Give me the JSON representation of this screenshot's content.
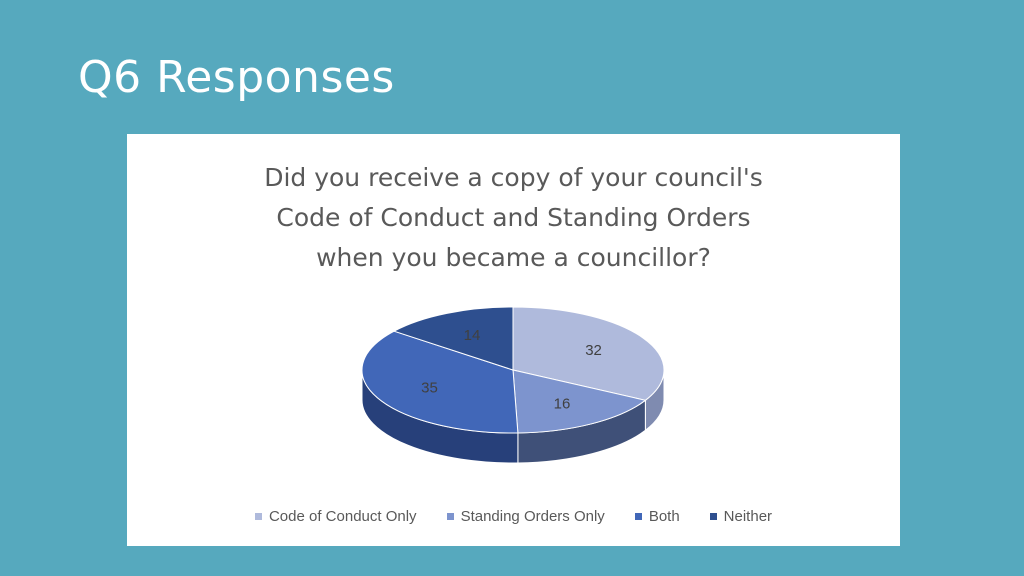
{
  "slide": {
    "title": "Q6 Responses"
  },
  "colors": {
    "background": "#56A9BE",
    "panel": "#FFFFFF",
    "slice_tops": [
      "#AFBADC",
      "#7D94CE",
      "#4167B8",
      "#2E4F8F"
    ],
    "slice_sides": [
      "#7F8BB0",
      "#3F5078",
      "#27407A",
      "#1E3566"
    ]
  },
  "chart_data": {
    "type": "pie",
    "title_lines": [
      "Did you receive a copy of your council's",
      "Code of Conduct and Standing Orders",
      "when you became a councillor?"
    ],
    "categories": [
      "Code of Conduct Only",
      "Standing Orders Only",
      "Both",
      "Neither"
    ],
    "values": [
      32,
      16,
      35,
      14
    ],
    "data_labels": [
      "32",
      "16",
      "35",
      "14"
    ],
    "legend_position": "bottom",
    "style": "3d"
  }
}
